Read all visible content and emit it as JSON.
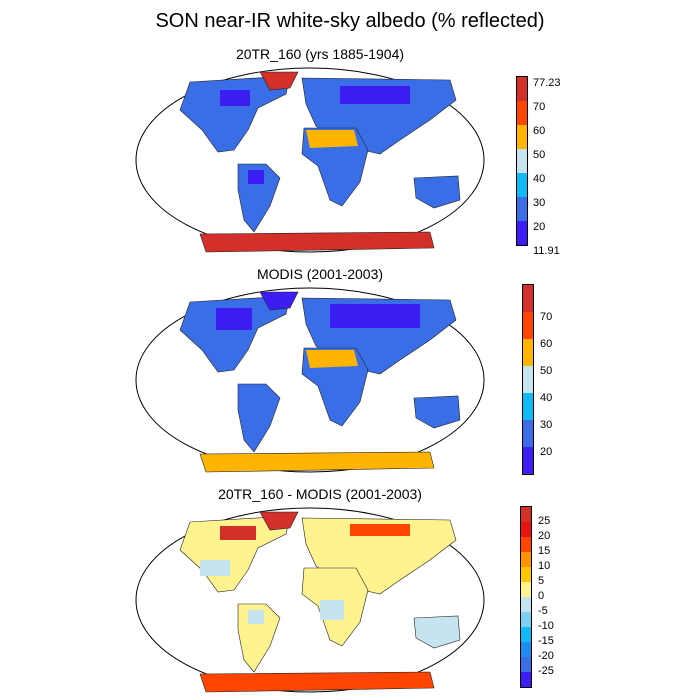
{
  "figure": {
    "title": "SON near-IR white-sky albedo (% reflected)"
  },
  "panels": [
    {
      "title": "20TR_160 (yrs 1885-1904)",
      "colorbar": {
        "labels": [
          "77.23",
          "70",
          "60",
          "50",
          "40",
          "30",
          "20",
          "11.91"
        ],
        "colors": [
          "#d3302a",
          "#ff4500",
          "#ffb400",
          "#c6e3f0",
          "#0fbaf7",
          "#3a6ee6",
          "#3c1ef5"
        ]
      }
    },
    {
      "title": "MODIS (2001-2003)",
      "colorbar": {
        "labels": [
          "70",
          "60",
          "50",
          "40",
          "30",
          "20"
        ],
        "colors": [
          "#d3302a",
          "#ff4500",
          "#ffb400",
          "#c6e3f0",
          "#0fbaf7",
          "#3a6ee6",
          "#3c1ef5"
        ]
      }
    },
    {
      "title": "20TR_160 - MODIS (2001-2003)",
      "colorbar": {
        "labels": [
          "25",
          "20",
          "15",
          "10",
          "5",
          "0",
          "-5",
          "-10",
          "-15",
          "-20",
          "-25"
        ],
        "colors": [
          "#d3302a",
          "#e8120f",
          "#ff4500",
          "#ff9400",
          "#ffc800",
          "#fff38f",
          "#c6e3f0",
          "#7fcff5",
          "#0fbaf7",
          "#1e8cf0",
          "#3a6ee6",
          "#3c1ef5"
        ]
      }
    }
  ]
}
